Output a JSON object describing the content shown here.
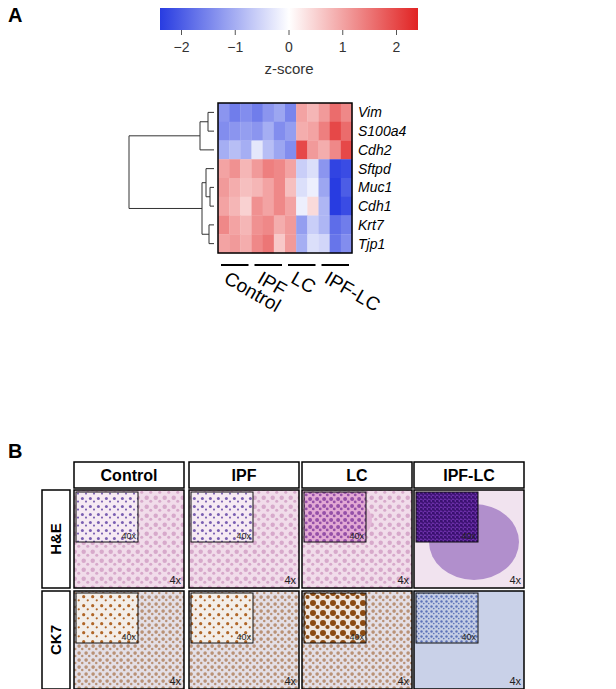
{
  "panel_labels": [
    "A",
    "B"
  ],
  "chart_data": {
    "type": "heatmap",
    "colorbar_title": "z-score",
    "clim": [
      -2.4,
      2.4
    ],
    "cticks": [
      {
        "value": -2,
        "label": "−2"
      },
      {
        "value": -1,
        "label": "−1"
      },
      0,
      1,
      2
    ],
    "rows": [
      "Vim",
      "S100a4",
      "Cdh2",
      "Sftpd",
      "Muc1",
      "Cdh1",
      "Krt7",
      "Tjp1"
    ],
    "groups": [
      "Control",
      "IPF",
      "LC",
      "IPF-LC"
    ],
    "values": [
      [
        -1.3,
        -1.6,
        -1.4,
        -1.6,
        -1.3,
        -1.1,
        -1.5,
        1.0,
        0.8,
        1.1,
        1.6,
        1.3
      ],
      [
        -1.4,
        -1.3,
        -1.2,
        -1.3,
        -1.0,
        -1.4,
        -1.2,
        0.9,
        1.0,
        1.4,
        2.0,
        1.6
      ],
      [
        -1.0,
        -0.8,
        -1.0,
        -0.3,
        -0.8,
        -1.1,
        -1.4,
        2.0,
        1.1,
        0.9,
        1.3,
        2.0
      ],
      [
        1.0,
        1.2,
        0.8,
        1.1,
        1.4,
        1.3,
        1.0,
        -0.6,
        -0.4,
        -1.3,
        -2.3,
        -2.2
      ],
      [
        1.1,
        0.9,
        0.7,
        0.8,
        1.0,
        1.3,
        0.7,
        -0.4,
        -0.2,
        -1.1,
        -2.4,
        -2.0
      ],
      [
        1.0,
        0.8,
        0.5,
        1.2,
        1.0,
        1.3,
        1.0,
        -0.2,
        0.4,
        -0.9,
        -2.4,
        -2.2
      ],
      [
        1.3,
        1.0,
        0.8,
        1.2,
        1.3,
        0.9,
        1.1,
        -1.2,
        -0.6,
        -0.9,
        -1.8,
        -1.6
      ],
      [
        1.0,
        1.1,
        0.9,
        1.3,
        1.5,
        0.6,
        1.1,
        -1.0,
        -0.4,
        -0.5,
        -1.7,
        -1.4
      ]
    ]
  },
  "histology": {
    "columns": [
      "Control",
      "IPF",
      "LC",
      "IPF-LC"
    ],
    "rows": [
      "H&E",
      "CK7"
    ],
    "inset_label": "40x",
    "magnification_label": "4x"
  }
}
